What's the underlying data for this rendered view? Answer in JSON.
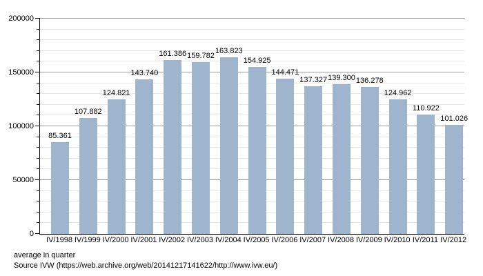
{
  "chart_data": {
    "type": "bar",
    "title": "",
    "xlabel": "",
    "ylabel": "",
    "categories": [
      "IV/1998",
      "IV/1999",
      "IV/2000",
      "IV/2001",
      "IV/2002",
      "IV/2003",
      "IV/2004",
      "IV/2005",
      "IV/2006",
      "IV/2007",
      "IV/2008",
      "IV/2009",
      "IV/2010",
      "IV/2011",
      "IV/2012"
    ],
    "values": [
      85361,
      107882,
      124821,
      143740,
      161386,
      159782,
      163823,
      154925,
      144471,
      137327,
      139300,
      136278,
      124962,
      110922,
      101026
    ],
    "value_labels": [
      "85.361",
      "107.882",
      "124.821",
      "143.740",
      "161.386",
      "159.782",
      "163.823",
      "154.925",
      "144.471",
      "137.327",
      "139.300",
      "136.278",
      "124.962",
      "110.922",
      "101.026"
    ],
    "ylim": [
      0,
      200000
    ],
    "y_major_ticks": [
      0,
      50000,
      100000,
      150000,
      200000
    ],
    "y_major_tick_labels": [
      "0",
      "50000",
      "100000",
      "150000",
      "200000"
    ],
    "y_minor_step": 10000,
    "grid": true,
    "legend": "none",
    "bar_color": "#9FB5CE",
    "major_grid_color": "#9a9a9a",
    "minor_grid_color": "#e8e8e8",
    "axis_color": "#000000"
  },
  "footer": {
    "line1": "average in quarter",
    "line2": "Source IVW (https://web.archive.org/web/20141217141622/http://www.ivw.eu/)"
  }
}
